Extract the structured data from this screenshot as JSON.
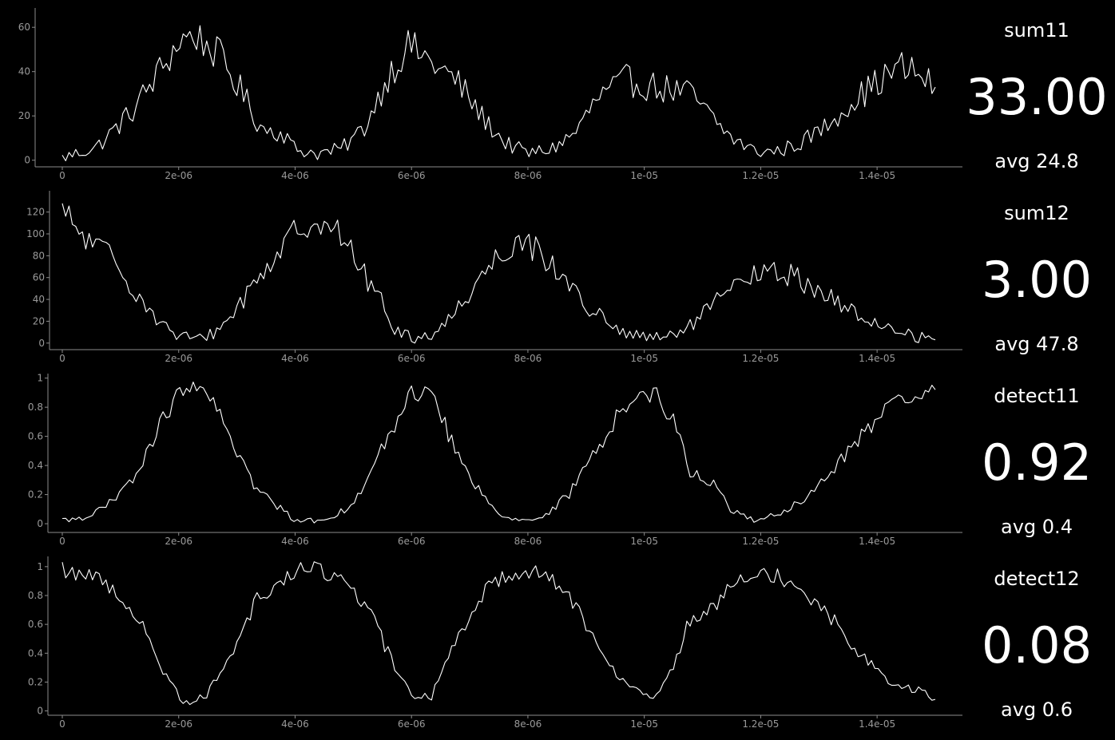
{
  "colors": {
    "background": "#000000",
    "line": "#ffffff",
    "axis": "#8c8c8c",
    "tick_text": "#9a9a9a"
  },
  "chart_data": [
    {
      "type": "line",
      "name": "sum11",
      "current_value": "33.00",
      "average": "avg 24.8",
      "xlim": [
        0,
        1.5e-05
      ],
      "ylim": [
        -3,
        68
      ],
      "x_ticks": [
        0,
        2e-06,
        4e-06,
        6e-06,
        8e-06,
        1e-05,
        1.2e-05,
        1.4e-05
      ],
      "x_tick_labels": [
        "0",
        "2e-06",
        "4e-06",
        "6e-06",
        "8e-06",
        "1e-05",
        "1.2e-05",
        "1.4e-05"
      ],
      "y_ticks": [
        0,
        20,
        40,
        60
      ],
      "y_tick_labels": [
        "0",
        "20",
        "40",
        "60"
      ],
      "anchors": [
        [
          0,
          1
        ],
        [
          0.6,
          6
        ],
        [
          1.2,
          22
        ],
        [
          1.8,
          45
        ],
        [
          2.05,
          55
        ],
        [
          2.3,
          56
        ],
        [
          2.7,
          47
        ],
        [
          3.1,
          30
        ],
        [
          3.4,
          15
        ],
        [
          3.8,
          12
        ],
        [
          4.0,
          5
        ],
        [
          4.4,
          3
        ],
        [
          4.8,
          5
        ],
        [
          5.2,
          15
        ],
        [
          5.6,
          38
        ],
        [
          5.95,
          52
        ],
        [
          6.3,
          45
        ],
        [
          6.8,
          35
        ],
        [
          7.2,
          20
        ],
        [
          7.6,
          8
        ],
        [
          8.0,
          3
        ],
        [
          8.4,
          5
        ],
        [
          8.8,
          12
        ],
        [
          9.2,
          28
        ],
        [
          9.7,
          36
        ],
        [
          10.2,
          33
        ],
        [
          10.8,
          30
        ],
        [
          11.2,
          18
        ],
        [
          11.5,
          10
        ],
        [
          11.9,
          4
        ],
        [
          12.3,
          4
        ],
        [
          12.7,
          8
        ],
        [
          13.1,
          15
        ],
        [
          13.5,
          25
        ],
        [
          14.0,
          35
        ],
        [
          14.4,
          42
        ],
        [
          14.75,
          38
        ],
        [
          15.0,
          33
        ]
      ],
      "noise": 8
    },
    {
      "type": "line",
      "name": "sum12",
      "current_value": "3.00",
      "average": "avg 47.8",
      "xlim": [
        0,
        1.5e-05
      ],
      "ylim": [
        -6,
        138
      ],
      "x_ticks": [
        0,
        2e-06,
        4e-06,
        6e-06,
        8e-06,
        1e-05,
        1.2e-05,
        1.4e-05
      ],
      "x_tick_labels": [
        "0",
        "2e-06",
        "4e-06",
        "6e-06",
        "8e-06",
        "1e-05",
        "1.2e-05",
        "1.4e-05"
      ],
      "y_ticks": [
        0,
        20,
        40,
        60,
        80,
        100,
        120
      ],
      "y_tick_labels": [
        "0",
        "20",
        "40",
        "60",
        "80",
        "100",
        "120"
      ],
      "anchors": [
        [
          0,
          120
        ],
        [
          0.4,
          95
        ],
        [
          0.8,
          80
        ],
        [
          1.1,
          60
        ],
        [
          1.5,
          30
        ],
        [
          1.9,
          8
        ],
        [
          2.3,
          3
        ],
        [
          2.7,
          12
        ],
        [
          3.1,
          40
        ],
        [
          3.5,
          70
        ],
        [
          3.9,
          95
        ],
        [
          4.3,
          115
        ],
        [
          4.6,
          110
        ],
        [
          5.0,
          80
        ],
        [
          5.4,
          45
        ],
        [
          5.75,
          10
        ],
        [
          6.1,
          4
        ],
        [
          6.5,
          12
        ],
        [
          6.9,
          40
        ],
        [
          7.4,
          75
        ],
        [
          7.8,
          95
        ],
        [
          8.2,
          85
        ],
        [
          8.6,
          60
        ],
        [
          9.0,
          35
        ],
        [
          9.5,
          12
        ],
        [
          9.9,
          6
        ],
        [
          10.3,
          4
        ],
        [
          10.7,
          12
        ],
        [
          11.1,
          30
        ],
        [
          11.5,
          50
        ],
        [
          11.9,
          62
        ],
        [
          12.3,
          65
        ],
        [
          12.7,
          58
        ],
        [
          13.1,
          45
        ],
        [
          13.5,
          30
        ],
        [
          13.9,
          20
        ],
        [
          14.3,
          12
        ],
        [
          14.7,
          6
        ],
        [
          15.0,
          3
        ]
      ],
      "noise": 14
    },
    {
      "type": "line",
      "name": "detect11",
      "current_value": "0.92",
      "average": "avg 0.4",
      "xlim": [
        0,
        1.5e-05
      ],
      "ylim": [
        -0.06,
        1.02
      ],
      "x_ticks": [
        0,
        2e-06,
        4e-06,
        6e-06,
        8e-06,
        1e-05,
        1.2e-05,
        1.4e-05
      ],
      "x_tick_labels": [
        "0",
        "2e-06",
        "4e-06",
        "6e-06",
        "8e-06",
        "1e-05",
        "1.2e-05",
        "1.4e-05"
      ],
      "y_ticks": [
        0,
        0.2,
        0.4,
        0.6,
        0.8,
        1
      ],
      "y_tick_labels": [
        "0",
        "0.2",
        "0.4",
        "0.6",
        "0.8",
        "1"
      ],
      "anchors": [
        [
          0,
          0.02
        ],
        [
          0.5,
          0.06
        ],
        [
          0.9,
          0.16
        ],
        [
          1.3,
          0.35
        ],
        [
          1.7,
          0.7
        ],
        [
          2.1,
          0.95
        ],
        [
          2.5,
          0.88
        ],
        [
          2.9,
          0.6
        ],
        [
          3.3,
          0.25
        ],
        [
          3.7,
          0.12
        ],
        [
          4.0,
          0.03
        ],
        [
          4.4,
          0.02
        ],
        [
          4.8,
          0.08
        ],
        [
          5.2,
          0.25
        ],
        [
          5.6,
          0.6
        ],
        [
          6.0,
          0.9
        ],
        [
          6.35,
          0.9
        ],
        [
          6.7,
          0.55
        ],
        [
          7.1,
          0.25
        ],
        [
          7.5,
          0.08
        ],
        [
          7.9,
          0.02
        ],
        [
          8.3,
          0.05
        ],
        [
          8.7,
          0.2
        ],
        [
          9.1,
          0.45
        ],
        [
          9.5,
          0.72
        ],
        [
          9.9,
          0.88
        ],
        [
          10.2,
          0.9
        ],
        [
          10.5,
          0.7
        ],
        [
          10.8,
          0.35
        ],
        [
          11.2,
          0.28
        ],
        [
          11.5,
          0.08
        ],
        [
          11.9,
          0.03
        ],
        [
          12.3,
          0.06
        ],
        [
          12.7,
          0.15
        ],
        [
          13.1,
          0.3
        ],
        [
          13.5,
          0.5
        ],
        [
          13.9,
          0.68
        ],
        [
          14.3,
          0.82
        ],
        [
          14.7,
          0.86
        ],
        [
          15.0,
          0.92
        ]
      ],
      "noise": 0.06
    },
    {
      "type": "line",
      "name": "detect12",
      "current_value": "0.08",
      "average": "avg 0.6",
      "xlim": [
        0,
        1.5e-05
      ],
      "ylim": [
        -0.03,
        1.06
      ],
      "x_ticks": [
        0,
        2e-06,
        4e-06,
        6e-06,
        8e-06,
        1e-05,
        1.2e-05,
        1.4e-05
      ],
      "x_tick_labels": [
        "0",
        "2e-06",
        "4e-06",
        "6e-06",
        "8e-06",
        "1e-05",
        "1.2e-05",
        "1.4e-05"
      ],
      "y_ticks": [
        0,
        0.2,
        0.4,
        0.6,
        0.8,
        1
      ],
      "y_tick_labels": [
        "0",
        "0.2",
        "0.4",
        "0.6",
        "0.8",
        "1"
      ],
      "anchors": [
        [
          0,
          0.98
        ],
        [
          0.5,
          0.94
        ],
        [
          0.9,
          0.84
        ],
        [
          1.3,
          0.65
        ],
        [
          1.7,
          0.3
        ],
        [
          2.1,
          0.05
        ],
        [
          2.5,
          0.12
        ],
        [
          2.9,
          0.4
        ],
        [
          3.3,
          0.75
        ],
        [
          3.7,
          0.88
        ],
        [
          4.0,
          0.97
        ],
        [
          4.4,
          0.98
        ],
        [
          4.8,
          0.92
        ],
        [
          5.2,
          0.75
        ],
        [
          5.6,
          0.4
        ],
        [
          6.0,
          0.1
        ],
        [
          6.35,
          0.1
        ],
        [
          6.7,
          0.45
        ],
        [
          7.1,
          0.75
        ],
        [
          7.5,
          0.92
        ],
        [
          7.9,
          0.98
        ],
        [
          8.3,
          0.95
        ],
        [
          8.7,
          0.8
        ],
        [
          9.1,
          0.55
        ],
        [
          9.5,
          0.28
        ],
        [
          9.9,
          0.12
        ],
        [
          10.2,
          0.1
        ],
        [
          10.5,
          0.3
        ],
        [
          10.8,
          0.65
        ],
        [
          11.2,
          0.72
        ],
        [
          11.5,
          0.92
        ],
        [
          11.9,
          0.97
        ],
        [
          12.3,
          0.94
        ],
        [
          12.7,
          0.85
        ],
        [
          13.1,
          0.7
        ],
        [
          13.5,
          0.5
        ],
        [
          13.9,
          0.32
        ],
        [
          14.3,
          0.18
        ],
        [
          14.7,
          0.14
        ],
        [
          15.0,
          0.08
        ]
      ],
      "noise": 0.06
    }
  ]
}
